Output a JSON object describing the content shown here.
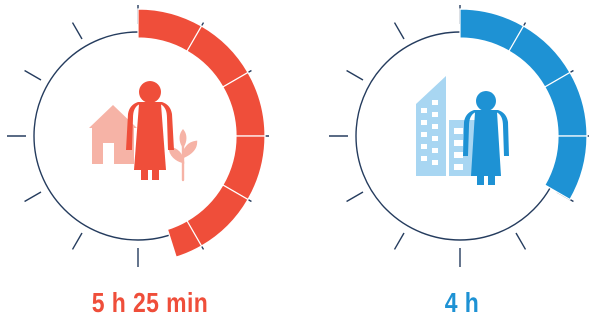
{
  "colors": {
    "red": "#ef4e3a",
    "red_light": "#f6b3a6",
    "blue": "#1e92d4",
    "blue_light": "#a8d6f2",
    "dial_line": "#253c5e",
    "segment_divider": "#ffffff"
  },
  "clocks": [
    {
      "name": "left",
      "time_label": "5 h 25 min",
      "hours": 5.4167,
      "color": "#ef4e3a",
      "icons": [
        "house-icon",
        "woman-icon",
        "plant-icon"
      ]
    },
    {
      "name": "right",
      "time_label": "4 h",
      "hours": 4,
      "color": "#1e92d4",
      "icons": [
        "office-building-icon",
        "woman-icon"
      ]
    }
  ],
  "ticks_per_clock": 12
}
